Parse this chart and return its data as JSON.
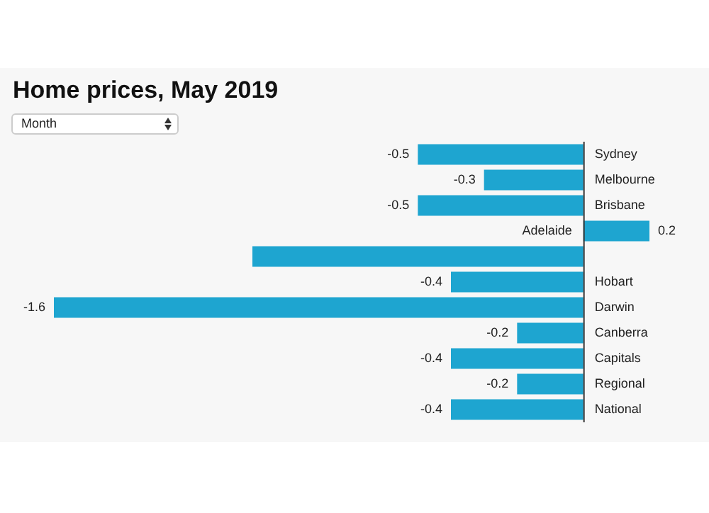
{
  "chart_data": {
    "type": "bar",
    "orientation": "horizontal",
    "title": "Home prices, May 2019",
    "annotations": [
      "Month"
    ],
    "categories": [
      "Sydney",
      "Melbourne",
      "Brisbane",
      "Adelaide",
      null,
      "Hobart",
      "Darwin",
      "Canberra",
      "Capitals",
      "Regional",
      "National"
    ],
    "values": [
      -0.5,
      -0.3,
      -0.5,
      0.2,
      -1.0,
      -0.4,
      -1.6,
      -0.2,
      -0.4,
      -0.2,
      -0.4
    ],
    "value_labels": [
      "-0.5",
      "-0.3",
      "-0.5",
      "0.2",
      null,
      "-0.4",
      "-1.6",
      "-0.2",
      "-0.4",
      "-0.2",
      "-0.4"
    ],
    "color": "#1ea5d0"
  }
}
